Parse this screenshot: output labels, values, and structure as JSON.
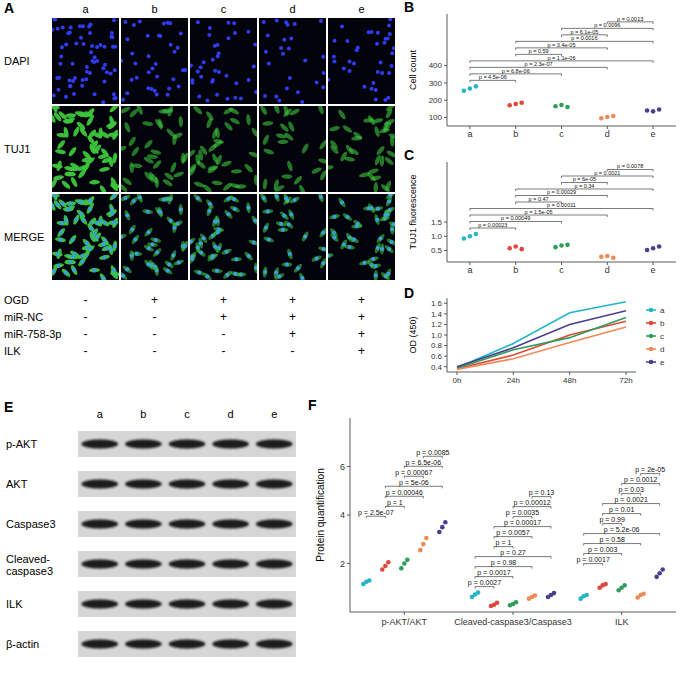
{
  "figure": {
    "panel_A": {
      "panel": "A",
      "columns": [
        "a",
        "b",
        "c",
        "d",
        "e"
      ],
      "channels": [
        "DAPI",
        "TUJ1",
        "MERGE"
      ],
      "conditions": [
        {
          "label": "OGD",
          "marks": [
            "-",
            "+",
            "+",
            "+",
            "+"
          ]
        },
        {
          "label": "miR-NC",
          "marks": [
            "-",
            "-",
            "+",
            "+",
            "+"
          ]
        },
        {
          "label": "miR-758-3p",
          "marks": [
            "-",
            "-",
            "-",
            "+",
            "+"
          ]
        },
        {
          "label": "ILK",
          "marks": [
            "-",
            "-",
            "-",
            "-",
            "+"
          ]
        }
      ]
    },
    "panel_E": {
      "panel": "E",
      "lanes": [
        "a",
        "b",
        "c",
        "d",
        "e"
      ],
      "rows": [
        "p-AKT",
        "AKT",
        "Caspase3",
        "Cleaved-caspase3",
        "ILK",
        "β-actin"
      ]
    }
  },
  "chart_data": [
    {
      "panel": "B",
      "type": "scatter",
      "y_label": "Cell count",
      "grid": false,
      "categories": [
        "a",
        "b",
        "c",
        "d",
        "e"
      ],
      "ylim": [
        50,
        700
      ],
      "yticks": [
        100,
        200,
        300,
        400
      ],
      "series": [
        {
          "colors": [
            "#22b6c6",
            "#e0473a",
            "#2f9e5a",
            "#f08a55",
            "#4a3f8f"
          ],
          "values": [
            255,
            170,
            165,
            95,
            140
          ]
        },
        {
          "colors": [
            "#22b6c6",
            "#e0473a",
            "#2f9e5a",
            "#f08a55",
            "#4a3f8f"
          ],
          "values": [
            268,
            178,
            172,
            102,
            135
          ]
        },
        {
          "colors": [
            "#22b6c6",
            "#e0473a",
            "#2f9e5a",
            "#f08a55",
            "#4a3f8f"
          ],
          "values": [
            280,
            185,
            160,
            108,
            146
          ]
        }
      ],
      "comparisons": [
        {
          "from": 3,
          "to": 4,
          "label": "p = 0.0013"
        },
        {
          "from": 2,
          "to": 4,
          "label": "p = 0.0096"
        },
        {
          "from": 2,
          "to": 3,
          "label": "p = 6.1e-05"
        },
        {
          "from": 1,
          "to": 4,
          "label": "p = 0.0016"
        },
        {
          "from": 1,
          "to": 3,
          "label": "p = 3.4e-05"
        },
        {
          "from": 1,
          "to": 2,
          "label": "p = 0.59"
        },
        {
          "from": 0,
          "to": 4,
          "label": "p = 1.1e-06"
        },
        {
          "from": 0,
          "to": 3,
          "label": "p = 2.3e-07"
        },
        {
          "from": 0,
          "to": 2,
          "label": "p = 6.8e-06"
        },
        {
          "from": 0,
          "to": 1,
          "label": "p = 4.5e-06"
        }
      ]
    },
    {
      "panel": "C",
      "type": "scatter",
      "y_label": "TUJ1 fluorescence",
      "grid": false,
      "categories": [
        "a",
        "b",
        "c",
        "d",
        "e"
      ],
      "ylim": [
        0.1,
        3.6
      ],
      "yticks": [
        0.5,
        {
          "value": 1,
          "label": "1.0"
        },
        1.5
      ],
      "series": [
        {
          "colors": [
            "#22b6c6",
            "#e0473a",
            "#2f9e5a",
            "#f08a55",
            "#4a3f8f"
          ],
          "values": [
            0.92,
            0.58,
            0.62,
            0.28,
            0.52
          ]
        },
        {
          "colors": [
            "#22b6c6",
            "#e0473a",
            "#2f9e5a",
            "#f08a55",
            "#4a3f8f"
          ],
          "values": [
            1.0,
            0.64,
            0.68,
            0.31,
            0.58
          ]
        },
        {
          "colors": [
            "#22b6c6",
            "#e0473a",
            "#2f9e5a",
            "#f08a55",
            "#4a3f8f"
          ],
          "values": [
            1.08,
            0.55,
            0.7,
            0.25,
            0.64
          ]
        }
      ],
      "comparisons": [
        {
          "from": 3,
          "to": 4,
          "label": "p = 0.0078"
        },
        {
          "from": 2,
          "to": 4,
          "label": "p = 0.0021"
        },
        {
          "from": 2,
          "to": 3,
          "label": "p = 6e-05"
        },
        {
          "from": 1,
          "to": 4,
          "label": "p = 0.34"
        },
        {
          "from": 1,
          "to": 3,
          "label": "p = 0.00029"
        },
        {
          "from": 1,
          "to": 2,
          "label": "p = 0.47"
        },
        {
          "from": 0,
          "to": 4,
          "label": "p = 0.00011"
        },
        {
          "from": 0,
          "to": 3,
          "label": "p = 1.5e-05"
        },
        {
          "from": 0,
          "to": 2,
          "label": "p = 0.00049"
        },
        {
          "from": 0,
          "to": 1,
          "label": "p = 0.00023"
        }
      ]
    },
    {
      "panel": "D",
      "type": "line",
      "y_label": "OD (450)",
      "grid": false,
      "legend": "right",
      "categories": [
        "0h",
        "24h",
        "48h",
        "72h"
      ],
      "ylim": [
        0.3,
        1.7
      ],
      "yticks": [
        0.4,
        0.6,
        0.8,
        {
          "value": 1,
          "label": "1.0"
        },
        1.2,
        1.4,
        1.6
      ],
      "series": [
        {
          "name": "a",
          "color": "#22b6c6",
          "values": [
            0.38,
            0.84,
            1.42,
            1.63
          ]
        },
        {
          "name": "b",
          "color": "#e0473a",
          "values": [
            0.36,
            0.62,
            1.0,
            1.26
          ]
        },
        {
          "name": "c",
          "color": "#2f9e5a",
          "values": [
            0.37,
            0.72,
            0.95,
            1.33
          ]
        },
        {
          "name": "d",
          "color": "#f08a55",
          "values": [
            0.35,
            0.55,
            0.86,
            1.15
          ]
        },
        {
          "name": "e",
          "color": "#4a3f8f",
          "values": [
            0.4,
            0.76,
            1.2,
            1.46
          ]
        }
      ]
    },
    {
      "panel": "F",
      "type": "scatter",
      "y_label": "Protein quantification",
      "grid": false,
      "categories": [
        "p-AKT/AKT",
        "Cleaved-caspase3/Caspase3",
        "ILK"
      ],
      "ylim": [
        0,
        8
      ],
      "yticks": [
        2,
        4,
        6
      ],
      "series": [
        {
          "color": "#22b6c6",
          "values": [
            [
              1.15,
              1.25,
              1.3
            ],
            [
              0.62,
              0.72,
              0.8
            ],
            [
              0.55,
              0.65,
              0.7
            ]
          ]
        },
        {
          "color": "#e0473a",
          "values": [
            [
              1.75,
              1.9,
              2.05
            ],
            [
              0.25,
              0.3,
              0.38
            ],
            [
              1.0,
              1.1,
              1.15
            ]
          ]
        },
        {
          "color": "#2f9e5a",
          "values": [
            [
              1.8,
              2.0,
              2.15
            ],
            [
              0.28,
              0.33,
              0.4
            ],
            [
              0.9,
              1.0,
              1.1
            ]
          ]
        },
        {
          "color": "#f08a55",
          "values": [
            [
              2.55,
              2.8,
              3.05
            ],
            [
              0.55,
              0.62,
              0.68
            ],
            [
              0.6,
              0.7,
              0.75
            ]
          ]
        },
        {
          "color": "#4a3f8f",
          "values": [
            [
              3.3,
              3.5,
              3.7
            ],
            [
              0.62,
              0.7,
              0.78
            ],
            [
              1.45,
              1.6,
              1.75
            ]
          ]
        }
      ],
      "comparisons": [
        [
          {
            "from": 3,
            "to": 4,
            "label": "p = 0.0085"
          },
          {
            "from": 2,
            "to": 4,
            "label": "p = 6.5e-06"
          },
          {
            "from": 2,
            "to": 3,
            "label": "p = 0.00067"
          },
          {
            "from": 1,
            "to": 4,
            "label": "p = 5e-06"
          },
          {
            "from": 1,
            "to": 3,
            "label": "p = 0.00046"
          },
          {
            "from": 1,
            "to": 2,
            "label": "p = 1"
          },
          {
            "from": 0,
            "to": 1,
            "label": "p = 2.5e-07"
          }
        ],
        [
          {
            "from": 3,
            "to": 4,
            "label": "p = 0.13"
          },
          {
            "from": 2,
            "to": 4,
            "label": "p = 0.00012"
          },
          {
            "from": 2,
            "to": 3,
            "label": "p = 0.0035"
          },
          {
            "from": 1,
            "to": 4,
            "label": "p = 0.00017"
          },
          {
            "from": 1,
            "to": 3,
            "label": "p = 0.0057"
          },
          {
            "from": 1,
            "to": 2,
            "label": "p = 1"
          },
          {
            "from": 0,
            "to": 4,
            "label": "p = 0.27"
          },
          {
            "from": 0,
            "to": 3,
            "label": "p = 0.98"
          },
          {
            "from": 0,
            "to": 2,
            "label": "p = 0.0017"
          },
          {
            "from": 0,
            "to": 1,
            "label": "p = 0.0027"
          }
        ],
        [
          {
            "from": 3,
            "to": 4,
            "label": "p = 2e-05"
          },
          {
            "from": 2,
            "to": 4,
            "label": "p = 0.0012"
          },
          {
            "from": 2,
            "to": 3,
            "label": "p = 0.03"
          },
          {
            "from": 1,
            "to": 4,
            "label": "p = 0.0021"
          },
          {
            "from": 1,
            "to": 3,
            "label": "p = 0.01"
          },
          {
            "from": 1,
            "to": 2,
            "label": "p = 0.99"
          },
          {
            "from": 0,
            "to": 4,
            "label": "p = 5.2e-06"
          },
          {
            "from": 0,
            "to": 3,
            "label": "p = 0.58"
          },
          {
            "from": 0,
            "to": 2,
            "label": "p = 0.003"
          },
          {
            "from": 0,
            "to": 1,
            "label": "p = 0.0017"
          }
        ]
      ]
    }
  ]
}
